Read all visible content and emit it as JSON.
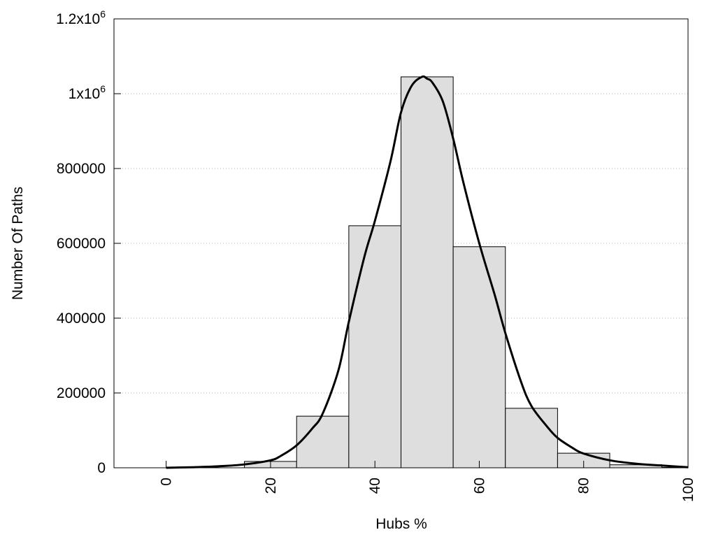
{
  "chart_data": {
    "type": "bar",
    "xlabel": "Hubs %",
    "ylabel": "Number Of Paths",
    "xlim": [
      -10,
      100
    ],
    "ylim": [
      0,
      1200000
    ],
    "x_ticks": [
      0,
      20,
      40,
      60,
      80,
      100
    ],
    "x_tick_labels": [
      "0",
      "20",
      "40",
      "60",
      "80",
      "100"
    ],
    "y_ticks": [
      {
        "value": 0,
        "label": "0"
      },
      {
        "value": 200000,
        "label": "200000"
      },
      {
        "value": 400000,
        "label": "400000"
      },
      {
        "value": 600000,
        "label": "600000"
      },
      {
        "value": 800000,
        "label": "800000"
      },
      {
        "value": 1000000,
        "label": "1x10",
        "sup": "6"
      },
      {
        "value": 1200000,
        "label": "1.2x10",
        "sup": "6"
      }
    ],
    "grid": "horizontal-dotted",
    "bins": [
      {
        "start": -5,
        "end": 5,
        "value": 0
      },
      {
        "start": 5,
        "end": 15,
        "value": 0
      },
      {
        "start": 15,
        "end": 25,
        "value": 17000
      },
      {
        "start": 25,
        "end": 35,
        "value": 138000
      },
      {
        "start": 35,
        "end": 45,
        "value": 647000
      },
      {
        "start": 45,
        "end": 55,
        "value": 1045000
      },
      {
        "start": 55,
        "end": 65,
        "value": 591000
      },
      {
        "start": 65,
        "end": 75,
        "value": 159000
      },
      {
        "start": 75,
        "end": 85,
        "value": 39000
      },
      {
        "start": 85,
        "end": 95,
        "value": 8000
      },
      {
        "start": 95,
        "end": 105,
        "value": 1000
      }
    ],
    "curve": {
      "x": [
        0,
        5,
        10,
        15,
        20,
        22,
        25,
        28,
        30,
        33,
        35,
        38,
        40,
        43,
        45,
        47,
        49,
        50,
        51,
        53,
        55,
        57,
        60,
        63,
        65,
        68,
        70,
        73,
        75,
        78,
        80,
        85,
        90,
        95,
        100
      ],
      "y": [
        0,
        1500,
        4000,
        9000,
        20000,
        32000,
        60000,
        105000,
        145000,
        260000,
        390000,
        565000,
        660000,
        820000,
        950000,
        1020000,
        1045000,
        1040000,
        1030000,
        980000,
        880000,
        760000,
        600000,
        460000,
        360000,
        230000,
        165000,
        110000,
        80000,
        52000,
        38000,
        20000,
        11000,
        6000,
        1500
      ]
    },
    "colors": {
      "bar_fill": "#dedede",
      "bar_stroke": "#000000",
      "curve": "#000000",
      "grid": "#b4b4b4"
    }
  }
}
